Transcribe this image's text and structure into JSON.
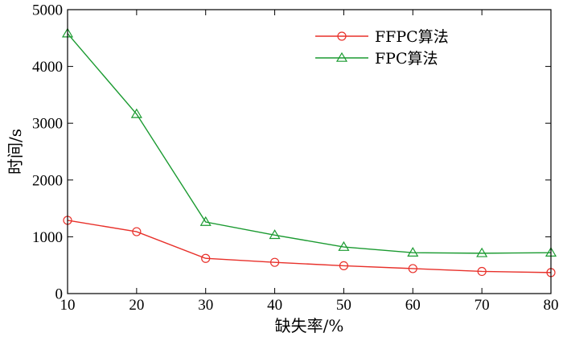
{
  "chart_data": {
    "type": "line",
    "title": "",
    "xlabel": "缺失率/%",
    "ylabel": "时间/s",
    "x": [
      10,
      20,
      30,
      40,
      50,
      60,
      70,
      80
    ],
    "xlim": [
      10,
      80
    ],
    "ylim": [
      0,
      5000
    ],
    "xticks": [
      10,
      20,
      30,
      40,
      50,
      60,
      70,
      80
    ],
    "yticks": [
      0,
      1000,
      2000,
      3000,
      4000,
      5000
    ],
    "grid": false,
    "legend_position": "top-right",
    "series": [
      {
        "name": "FFPC算法",
        "marker": "circle",
        "color": "#e8302a",
        "values": [
          1290,
          1090,
          620,
          550,
          490,
          440,
          390,
          370
        ]
      },
      {
        "name": "FPC算法",
        "marker": "triangle",
        "color": "#1a9a30",
        "values": [
          4580,
          3160,
          1260,
          1030,
          820,
          720,
          710,
          720
        ]
      }
    ]
  }
}
